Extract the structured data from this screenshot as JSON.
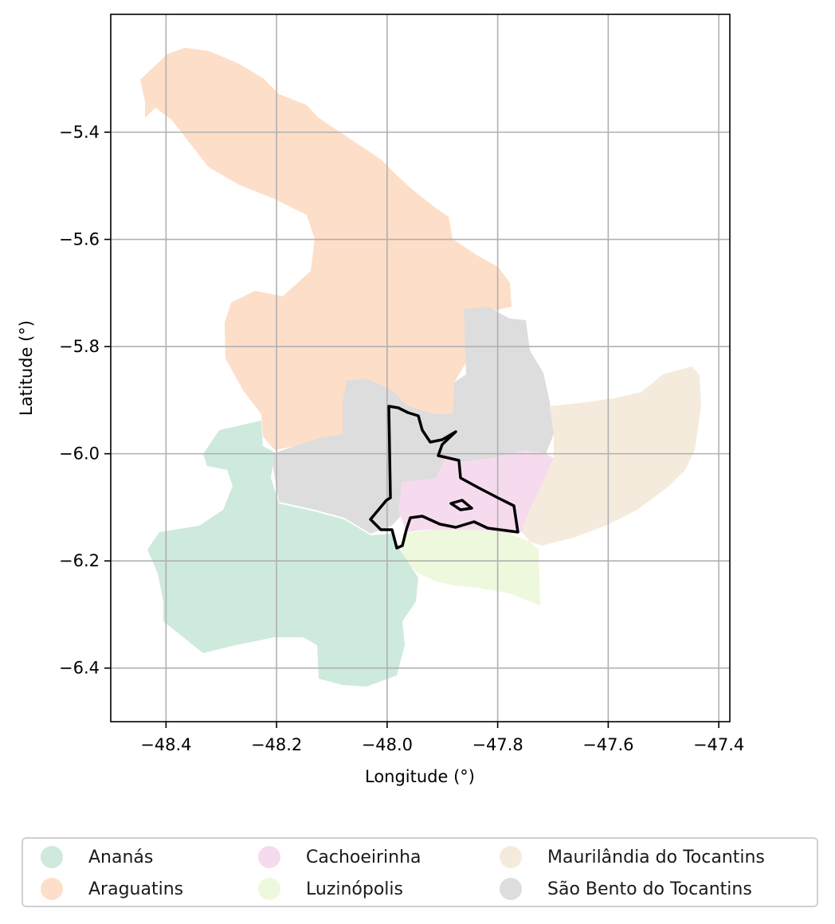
{
  "chart_data": {
    "type": "map",
    "xlabel": "Longitude (°)",
    "ylabel": "Latitude (°)",
    "xlim": [
      -48.5,
      -47.38
    ],
    "ylim": [
      -6.5,
      -5.18
    ],
    "xticks": [
      -48.4,
      -48.2,
      -48.0,
      -47.8,
      -47.6,
      -47.4
    ],
    "yticks": [
      -5.4,
      -5.6,
      -5.8,
      -6.0,
      -6.2,
      -6.4
    ],
    "xtick_labels": [
      "−48.4",
      "−48.2",
      "−48.0",
      "−47.8",
      "−47.6",
      "−47.4"
    ],
    "ytick_labels": [
      "−5.4",
      "−5.6",
      "−5.8",
      "−6.0",
      "−6.2",
      "−6.4"
    ],
    "grid": true,
    "legend_position": "bottom",
    "regions": [
      {
        "name": "Ananás",
        "color": "#ceeadd"
      },
      {
        "name": "Araguatins",
        "color": "#fddec8"
      },
      {
        "name": "Cachoeirinha",
        "color": "#f6dbee"
      },
      {
        "name": "Luzinópolis",
        "color": "#eef8dc"
      },
      {
        "name": "Maurilândia do Tocantins",
        "color": "#f5ebdc"
      },
      {
        "name": "São Bento do Tocantins",
        "color": "#dddddd"
      }
    ],
    "highlight_outline": {
      "color": "#000000",
      "description_units": "lon/lat"
    }
  }
}
